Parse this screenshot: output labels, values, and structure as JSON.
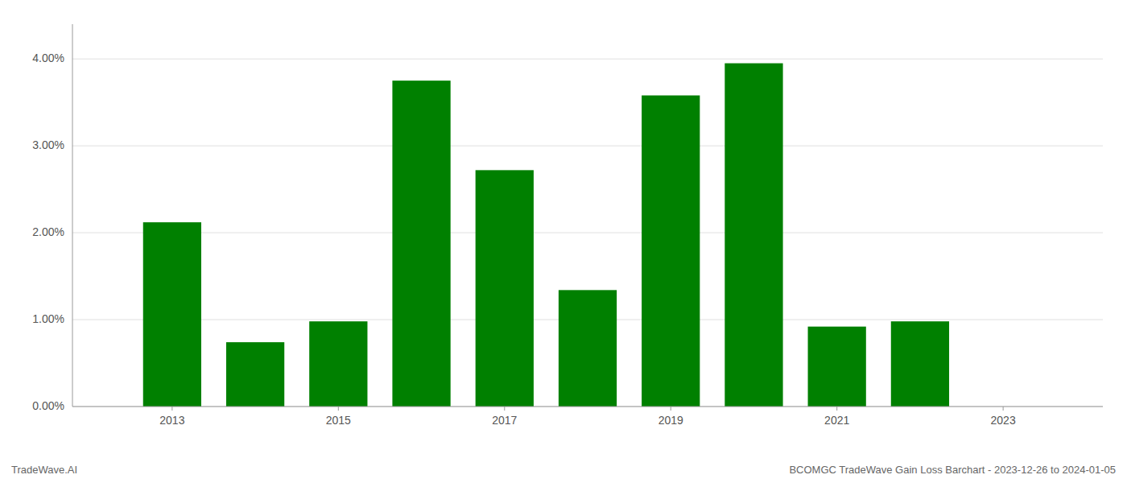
{
  "chart_data": {
    "type": "bar",
    "x": [
      2013,
      2014,
      2015,
      2016,
      2017,
      2018,
      2019,
      2020,
      2021,
      2022
    ],
    "values": [
      0.0212,
      0.0074,
      0.0098,
      0.0375,
      0.0272,
      0.0134,
      0.0358,
      0.0395,
      0.0092,
      0.0098
    ],
    "color": "#008000",
    "xlim": [
      2011.8,
      2024.2
    ],
    "xticks": [
      2013,
      2015,
      2017,
      2019,
      2021,
      2023
    ],
    "ylim": [
      0.0,
      0.044
    ],
    "yticks": [
      {
        "value": 0.0,
        "label": "0.00%"
      },
      {
        "value": 0.01,
        "label": "1.00%"
      },
      {
        "value": 0.02,
        "label": "2.00%"
      },
      {
        "value": 0.03,
        "label": "3.00%"
      },
      {
        "value": 0.04,
        "label": "4.00%"
      }
    ],
    "grid": true,
    "annotations": [
      "TradeWave.AI",
      "BCOMGC TradeWave Gain Loss Barchart - 2023-12-26 to 2024-01-05"
    ]
  }
}
